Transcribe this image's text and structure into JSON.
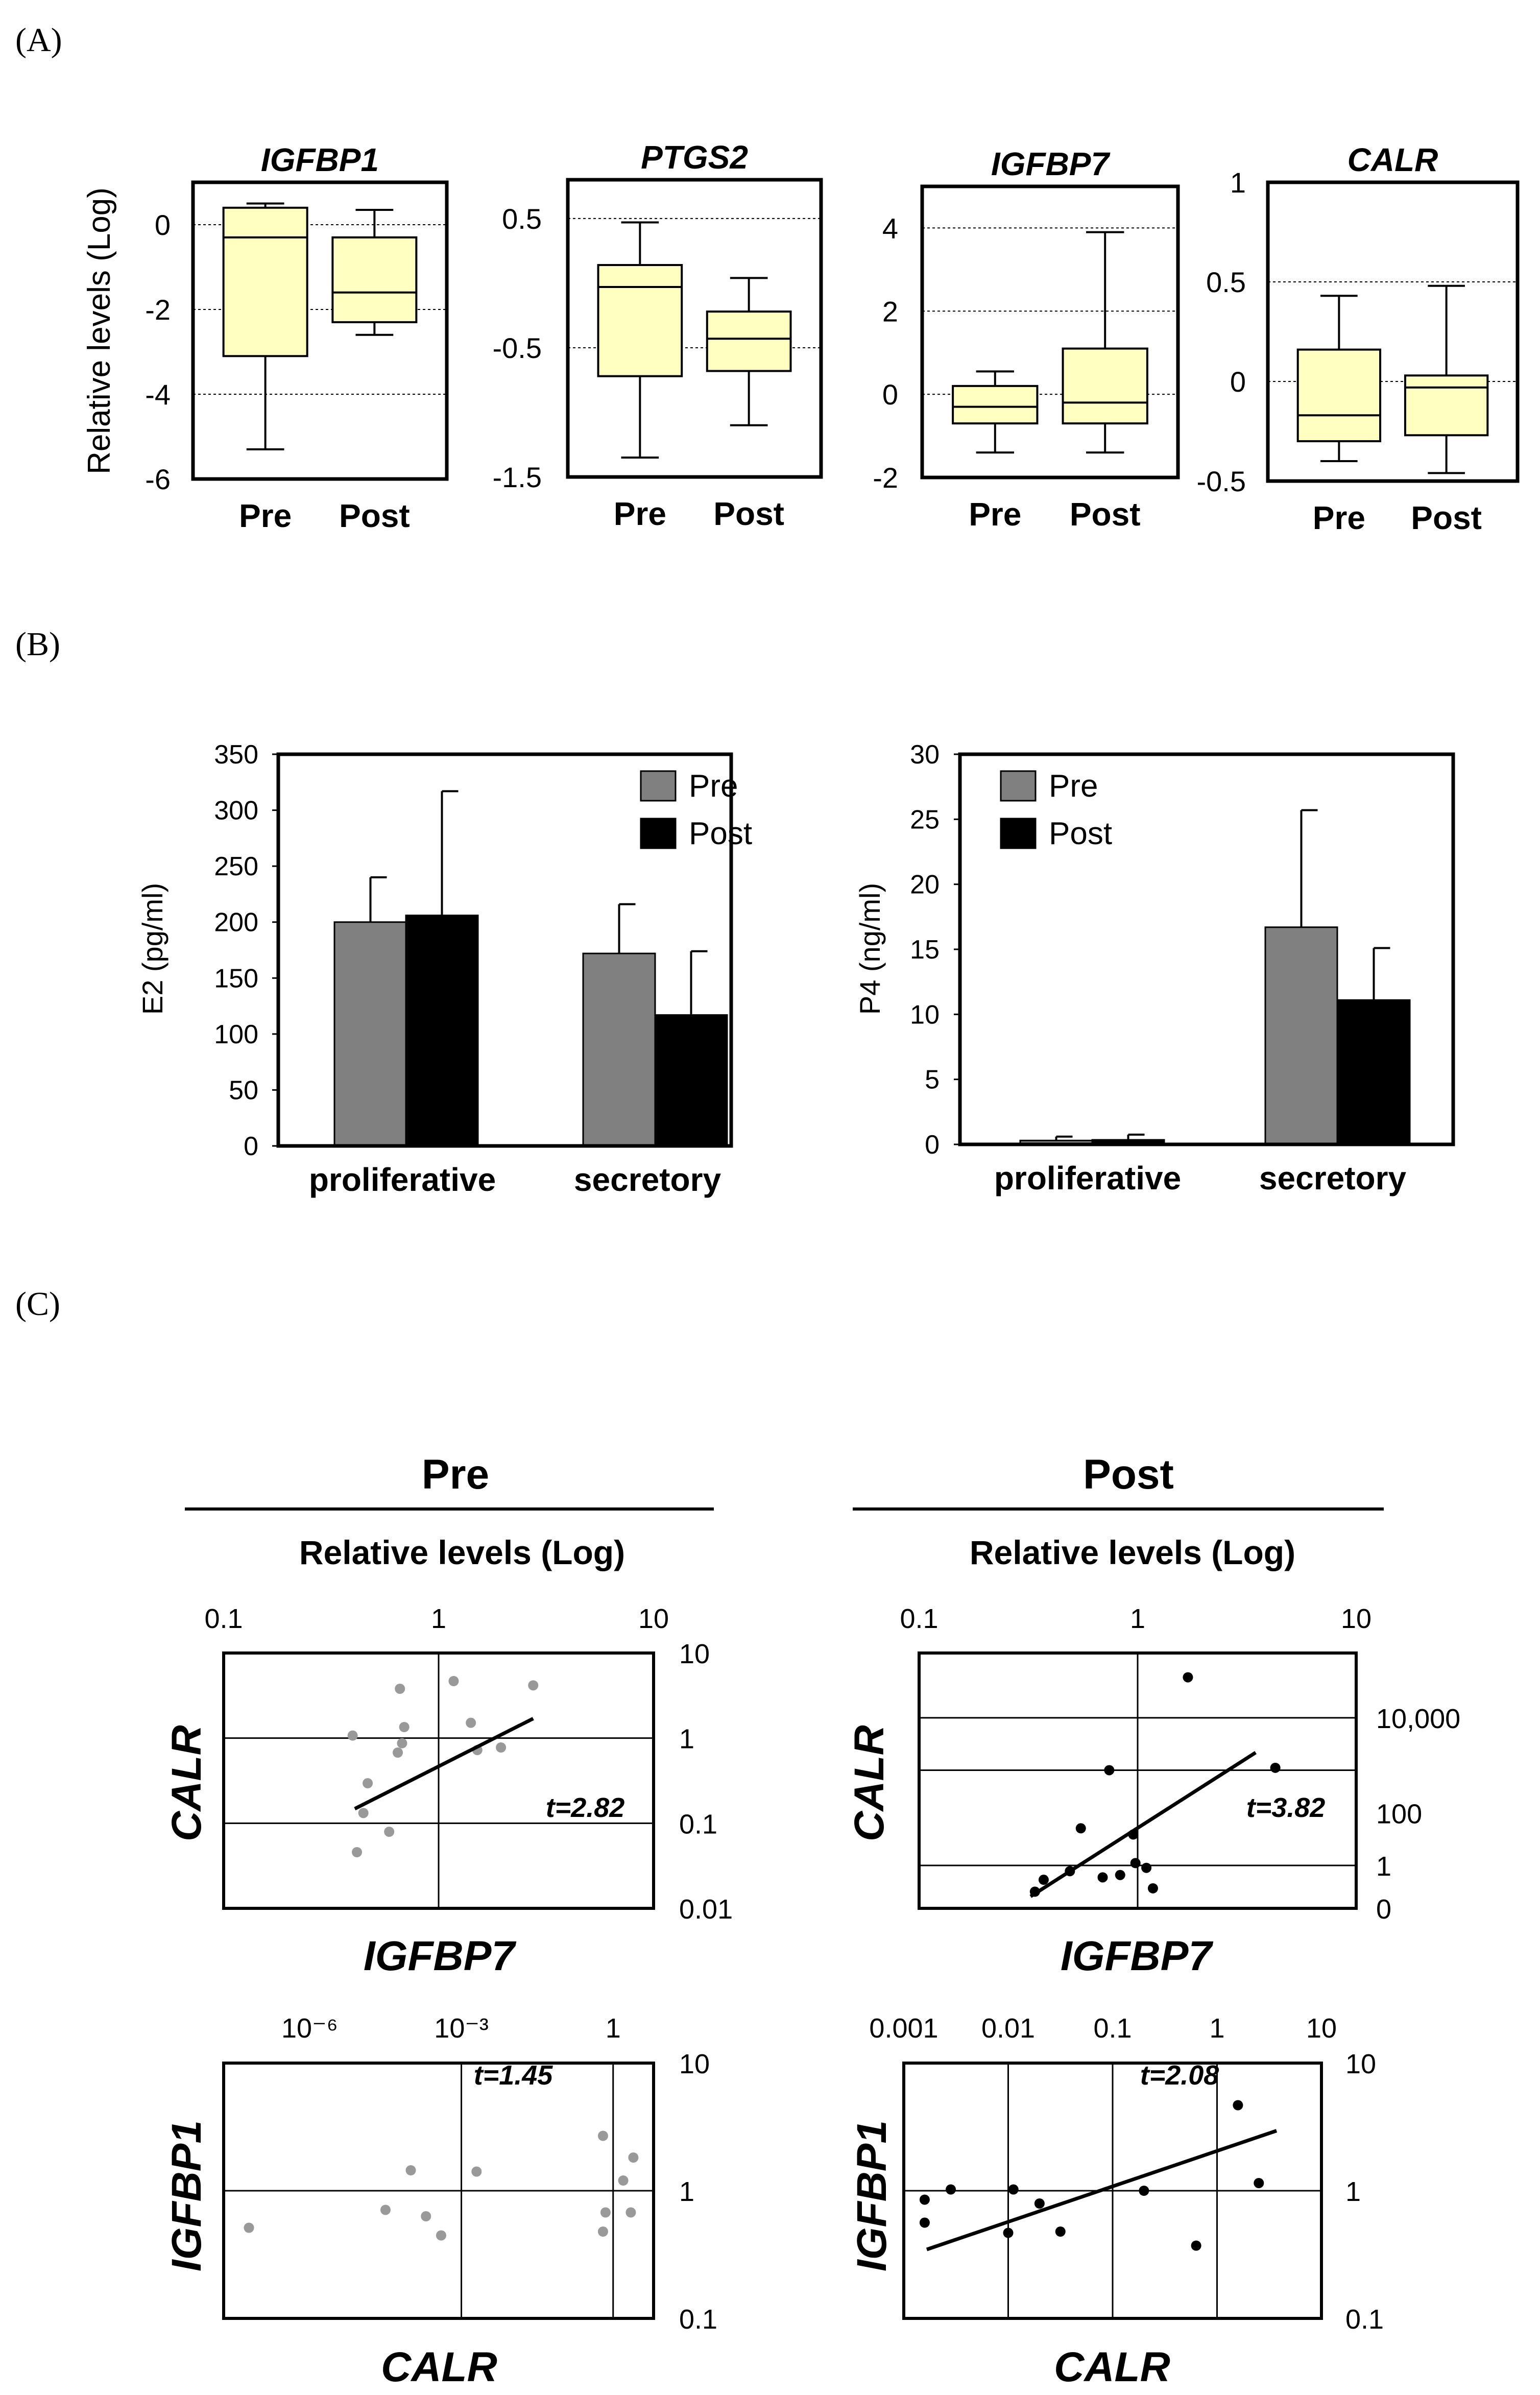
{
  "panels": {
    "a": "(A)",
    "b": "(B)",
    "c": "(C)"
  },
  "colors": {
    "box_fill": "#ffffc0",
    "bar_pre": "#808080",
    "bar_post": "#000000",
    "pre_points": "#999999",
    "post_points": "#000000",
    "pre_heading": "#666666"
  },
  "chart_data": [
    {
      "id": "boxplots",
      "type": "box",
      "ylabel": "Relative levels (Log)",
      "categories": [
        "Pre",
        "Post"
      ],
      "plots": [
        {
          "title": "IGFBP1",
          "ylim": [
            -6,
            1
          ],
          "ticks": [
            {
              "v": 0,
              "t": "0"
            },
            {
              "v": -2,
              "t": "-2"
            },
            {
              "v": -4,
              "t": "-4"
            },
            {
              "v": -6,
              "t": "-6"
            }
          ],
          "gridlines": [
            0,
            -2,
            -4
          ],
          "boxes": [
            {
              "min": -5.3,
              "q1": -3.1,
              "median": -0.3,
              "q3": 0.4,
              "max": 0.5
            },
            {
              "min": -2.6,
              "q1": -2.3,
              "median": -1.6,
              "q3": -0.3,
              "max": 0.35
            }
          ]
        },
        {
          "title": "PTGS2",
          "ylim": [
            -1.5,
            0.8
          ],
          "ticks": [
            {
              "v": 0.5,
              "t": "0.5"
            },
            {
              "v": -0.5,
              "t": "-0.5"
            },
            {
              "v": -1.5,
              "t": "-1.5"
            }
          ],
          "gridlines": [
            0.5,
            -0.5
          ],
          "boxes": [
            {
              "min": -1.35,
              "q1": -0.72,
              "median": -0.03,
              "q3": 0.14,
              "max": 0.47
            },
            {
              "min": -1.1,
              "q1": -0.68,
              "median": -0.43,
              "q3": -0.22,
              "max": 0.04
            }
          ]
        },
        {
          "title": "IGFBP7",
          "ylim": [
            -2,
            5
          ],
          "ticks": [
            {
              "v": 4,
              "t": "4"
            },
            {
              "v": 2,
              "t": "2"
            },
            {
              "v": 0,
              "t": "0"
            },
            {
              "v": -2,
              "t": "-2"
            }
          ],
          "gridlines": [
            4,
            2,
            0
          ],
          "boxes": [
            {
              "min": -1.4,
              "q1": -0.7,
              "median": -0.3,
              "q3": 0.2,
              "max": 0.55
            },
            {
              "min": -1.4,
              "q1": -0.7,
              "median": -0.2,
              "q3": 1.1,
              "max": 3.9
            }
          ]
        },
        {
          "title": "CALR",
          "ylim": [
            -0.5,
            1
          ],
          "ticks": [
            {
              "v": 1,
              "t": "1"
            },
            {
              "v": 0.5,
              "t": "0.5"
            },
            {
              "v": 0,
              "t": "0"
            },
            {
              "v": -0.5,
              "t": "-0.5"
            }
          ],
          "gridlines": [
            0.5,
            0
          ],
          "boxes": [
            {
              "min": -0.4,
              "q1": -0.3,
              "median": -0.17,
              "q3": 0.16,
              "max": 0.43
            },
            {
              "min": -0.46,
              "q1": -0.27,
              "median": -0.03,
              "q3": 0.03,
              "max": 0.48
            }
          ]
        }
      ]
    },
    {
      "id": "e2-bars",
      "type": "bar",
      "ylabel": "E2 (pg/ml)",
      "ylim": [
        0,
        350
      ],
      "yticks": [
        "350",
        "300",
        "250",
        "200",
        "150",
        "100",
        "50",
        "0"
      ],
      "categories": [
        "proliferative",
        "secretory"
      ],
      "series": [
        {
          "name": "Pre",
          "values": [
            200,
            172
          ],
          "errors": [
            40,
            44
          ]
        },
        {
          "name": "Post",
          "values": [
            206,
            117
          ],
          "errors": [
            111,
            57
          ]
        }
      ]
    },
    {
      "id": "p4-bars",
      "type": "bar",
      "ylabel": "P4 (ng/ml)",
      "ylim": [
        0,
        30
      ],
      "yticks": [
        "30",
        "25",
        "20",
        "15",
        "10",
        "5",
        "0"
      ],
      "categories": [
        "proliferative",
        "secretory"
      ],
      "series": [
        {
          "name": "Pre",
          "values": [
            0.3,
            16.7
          ],
          "errors": [
            0.3,
            9.0
          ]
        },
        {
          "name": "Post",
          "values": [
            0.35,
            11.1
          ],
          "errors": [
            0.4,
            4.0
          ]
        }
      ]
    },
    {
      "id": "pre-igfbp7-calr",
      "type": "scatter",
      "heading": "Pre",
      "subheading": "Relative levels (Log)",
      "xlabel": "IGFBP7",
      "ylabel": "CALR",
      "x_log_range": [
        -1,
        1
      ],
      "y_log_range": [
        -2,
        1
      ],
      "xticks": [
        {
          "v": -1,
          "t": "0.1"
        },
        {
          "v": 0,
          "t": "1"
        },
        {
          "v": 1,
          "t": "10"
        }
      ],
      "yticks": [
        {
          "v": 1,
          "t": "10"
        },
        {
          "v": 0,
          "t": "1"
        },
        {
          "v": -1,
          "t": "0.1"
        },
        {
          "v": -2,
          "t": "0.01"
        }
      ],
      "xgrid": [
        0
      ],
      "ygrid": [
        0,
        -1
      ],
      "annotation": "t=2.82",
      "fit": {
        "from": [
          -0.39,
          -0.83
        ],
        "to": [
          0.44,
          0.23
        ]
      },
      "points": [
        [
          -0.4,
          0.03
        ],
        [
          -0.18,
          0.58
        ],
        [
          -0.16,
          0.13
        ],
        [
          -0.19,
          -0.17
        ],
        [
          -0.17,
          -0.06
        ],
        [
          -0.33,
          -0.53
        ],
        [
          -0.35,
          -0.88
        ],
        [
          -0.23,
          -1.1
        ],
        [
          -0.38,
          -1.34
        ],
        [
          0.07,
          0.67
        ],
        [
          0.15,
          0.18
        ],
        [
          0.18,
          -0.14
        ],
        [
          0.29,
          -0.11
        ],
        [
          0.44,
          0.62
        ]
      ]
    },
    {
      "id": "post-igfbp7-calr",
      "type": "scatter",
      "heading": "Post",
      "subheading": "Relative levels (Log)",
      "xlabel": "IGFBP7",
      "ylabel": "CALR",
      "x_log_range": [
        -1,
        1
      ],
      "y_log_range": [
        0,
        5.36
      ],
      "xticks": [
        {
          "v": -1,
          "t": "0.1"
        },
        {
          "v": 0,
          "t": "1"
        },
        {
          "v": 1,
          "t": "10"
        }
      ],
      "yticks": [
        {
          "v": 4,
          "t": "10,000"
        },
        {
          "v": 2,
          "t": "100"
        },
        {
          "v": 0.9,
          "t": "1"
        },
        {
          "v": 0,
          "t": "0"
        }
      ],
      "xgrid": [
        0
      ],
      "ygrid": [
        4,
        2.9,
        0.9
      ],
      "annotation": "t=3.82",
      "fit": {
        "from": [
          -0.49,
          0.25
        ],
        "to": [
          0.54,
          3.27
        ]
      },
      "points": [
        [
          0.23,
          4.85
        ],
        [
          -0.13,
          2.9
        ],
        [
          0.63,
          2.95
        ],
        [
          -0.26,
          1.68
        ],
        [
          -0.02,
          1.55
        ],
        [
          -0.01,
          0.95
        ],
        [
          0.04,
          0.85
        ],
        [
          -0.43,
          0.6
        ],
        [
          -0.31,
          0.78
        ],
        [
          -0.16,
          0.65
        ],
        [
          -0.08,
          0.7
        ],
        [
          -0.47,
          0.35
        ],
        [
          0.07,
          0.42
        ]
      ]
    },
    {
      "id": "pre-calr-igfbp1",
      "type": "scatter",
      "heading": "",
      "xlabel": "CALR",
      "ylabel": "IGFBP1",
      "x_log_range": [
        -7.7,
        0.8
      ],
      "y_log_range": [
        -1,
        1
      ],
      "xticks": [
        {
          "v": -6,
          "t": "10⁻⁶"
        },
        {
          "v": -3,
          "t": "10⁻³"
        },
        {
          "v": 0,
          "t": "1"
        }
      ],
      "yticks": [
        {
          "v": 1,
          "t": "10"
        },
        {
          "v": 0,
          "t": "1"
        },
        {
          "v": -1,
          "t": "0.1"
        }
      ],
      "xgrid": [
        -3,
        0
      ],
      "ygrid": [
        0
      ],
      "annotation": "t=1.45",
      "fit": null,
      "points": [
        [
          -7.2,
          -0.29
        ],
        [
          -4.5,
          -0.15
        ],
        [
          -4.0,
          0.16
        ],
        [
          -3.7,
          -0.2
        ],
        [
          -3.4,
          -0.35
        ],
        [
          -2.7,
          0.15
        ],
        [
          -0.2,
          0.43
        ],
        [
          -0.2,
          -0.32
        ],
        [
          -0.15,
          -0.17
        ],
        [
          0.2,
          0.08
        ],
        [
          0.35,
          -0.17
        ],
        [
          0.4,
          0.26
        ]
      ]
    },
    {
      "id": "post-calr-igfbp1",
      "type": "scatter",
      "heading": "",
      "xlabel": "CALR",
      "ylabel": "IGFBP1",
      "x_log_range": [
        -3,
        1
      ],
      "y_log_range": [
        -1,
        1
      ],
      "xticks": [
        {
          "v": -3,
          "t": "0.001"
        },
        {
          "v": -2,
          "t": "0.01"
        },
        {
          "v": -1,
          "t": "0.1"
        },
        {
          "v": 0,
          "t": "1"
        },
        {
          "v": 1,
          "t": "10"
        }
      ],
      "yticks": [
        {
          "v": 1,
          "t": "10"
        },
        {
          "v": 0,
          "t": "1"
        },
        {
          "v": -1,
          "t": "0.1"
        }
      ],
      "xgrid": [
        -2,
        -1,
        0
      ],
      "ygrid": [
        0
      ],
      "annotation": "t=2.08",
      "fit": {
        "from": [
          -2.78,
          -0.46
        ],
        "to": [
          0.57,
          0.47
        ]
      },
      "points": [
        [
          -2.8,
          -0.07
        ],
        [
          -2.8,
          -0.25
        ],
        [
          -2.55,
          0.01
        ],
        [
          -2.0,
          -0.33
        ],
        [
          -1.95,
          0.01
        ],
        [
          -1.7,
          -0.1
        ],
        [
          -1.5,
          -0.32
        ],
        [
          -0.7,
          0.0
        ],
        [
          -0.2,
          -0.43
        ],
        [
          0.2,
          0.67
        ],
        [
          0.4,
          0.06
        ]
      ]
    }
  ]
}
